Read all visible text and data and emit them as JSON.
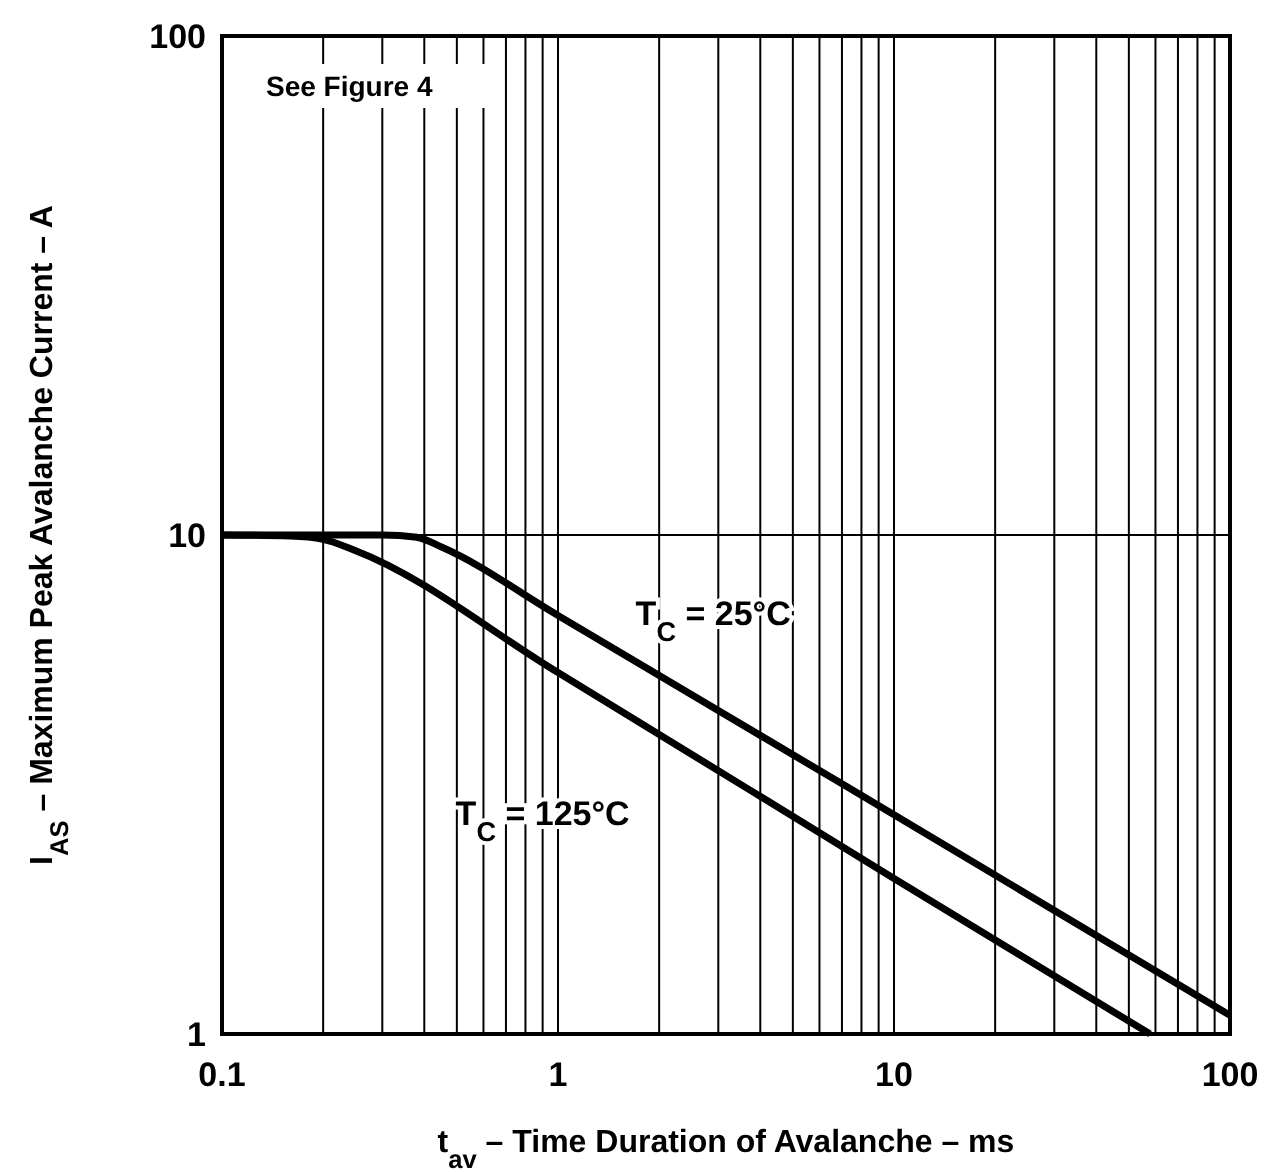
{
  "chart_data": {
    "type": "line",
    "xlabel": "t$_{av}$ – Time Duration of Avalanche – ms",
    "ylabel": "I$_{AS}$ – Maximum Peak Avalanche Current – A",
    "log": "xy",
    "grid": true,
    "xlim": [
      0.1,
      100
    ],
    "ylim": [
      1,
      100
    ],
    "xticks": [
      0.1,
      {
        "value": 0.2,
        "label": null
      },
      {
        "value": 0.3,
        "label": null
      },
      {
        "value": 0.4,
        "label": null
      },
      {
        "value": 0.5,
        "label": null
      },
      {
        "value": 0.6,
        "label": null
      },
      {
        "value": 0.7,
        "label": null
      },
      {
        "value": 0.8,
        "label": null
      },
      {
        "value": 0.9,
        "label": null
      },
      1,
      {
        "value": 2,
        "label": null
      },
      {
        "value": 3,
        "label": null
      },
      {
        "value": 4,
        "label": null
      },
      {
        "value": 5,
        "label": null
      },
      {
        "value": 6,
        "label": null
      },
      {
        "value": 7,
        "label": null
      },
      {
        "value": 8,
        "label": null
      },
      {
        "value": 9,
        "label": null
      },
      10,
      {
        "value": 20,
        "label": null
      },
      {
        "value": 30,
        "label": null
      },
      {
        "value": 40,
        "label": null
      },
      {
        "value": 50,
        "label": null
      },
      {
        "value": 60,
        "label": null
      },
      {
        "value": 70,
        "label": null
      },
      {
        "value": 80,
        "label": null
      },
      {
        "value": 90,
        "label": null
      },
      100
    ],
    "yticks": [
      1,
      10,
      100
    ],
    "marker": "none",
    "line_style": "solid",
    "series": [
      {
        "name": "T$_{C}$ = 25°C",
        "color": "#000000",
        "x": [
          0.1,
          0.3,
          0.38,
          0.45,
          1,
          10,
          100
        ],
        "values": [
          10,
          10,
          9.9,
          9.46,
          6.9,
          2.75,
          1.09
        ]
      },
      {
        "name": "T$_{C}$ = 125°C",
        "color": "#000000",
        "x": [
          0.1,
          0.16,
          0.2,
          0.25,
          1,
          10,
          57.8
        ],
        "values": [
          10,
          9.95,
          9.8,
          9.3,
          5.3,
          2.05,
          1
        ]
      }
    ],
    "annotations": [
      "See Figure 4"
    ]
  }
}
